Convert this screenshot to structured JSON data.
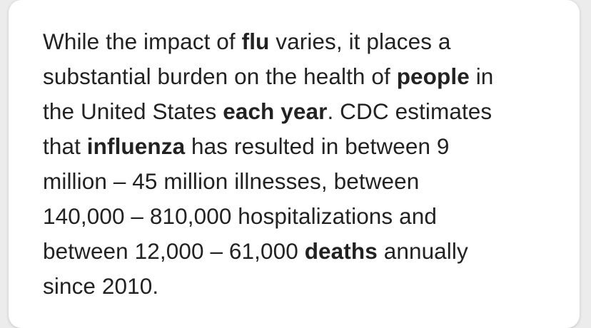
{
  "snippet": {
    "lines": [
      [
        {
          "text": "While the impact of ",
          "bold": false
        },
        {
          "text": "flu",
          "bold": true
        },
        {
          "text": " varies, it places a",
          "bold": false
        }
      ],
      [
        {
          "text": "substantial burden on the health of ",
          "bold": false
        },
        {
          "text": "people",
          "bold": true
        },
        {
          "text": " in",
          "bold": false
        }
      ],
      [
        {
          "text": "the United States ",
          "bold": false
        },
        {
          "text": "each year",
          "bold": true
        },
        {
          "text": ". CDC estimates",
          "bold": false
        }
      ],
      [
        {
          "text": "that ",
          "bold": false
        },
        {
          "text": "influenza",
          "bold": true
        },
        {
          "text": " has resulted in between 9",
          "bold": false
        }
      ],
      [
        {
          "text": "million – 45 million illnesses, between",
          "bold": false
        }
      ],
      [
        {
          "text": "140,000 – 810,000 hospitalizations and",
          "bold": false
        }
      ],
      [
        {
          "text": "between 12,000 – 61,000 ",
          "bold": false
        },
        {
          "text": "deaths",
          "bold": true
        },
        {
          "text": " annually",
          "bold": false
        }
      ],
      [
        {
          "text": "since 2010.",
          "bold": false
        }
      ]
    ]
  }
}
